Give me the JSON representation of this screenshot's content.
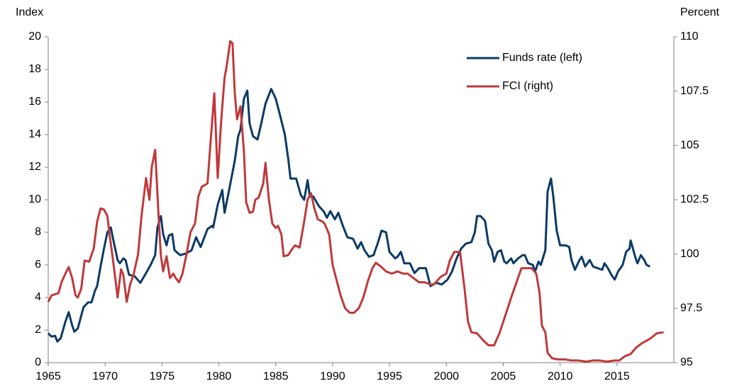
{
  "chart_data": {
    "type": "line",
    "ylabel": "Index",
    "y2label": "Percent",
    "xlim": [
      1965,
      2020
    ],
    "xticks": [
      1965,
      1970,
      1975,
      1980,
      1985,
      1990,
      1995,
      2000,
      2005,
      2010,
      2015
    ],
    "ylim": [
      0,
      20
    ],
    "yticks": [
      0,
      2,
      4,
      6,
      8,
      10,
      12,
      14,
      16,
      18,
      20
    ],
    "y2lim": [
      95,
      110
    ],
    "y2ticks": [
      95,
      97.5,
      100,
      102.5,
      105,
      107.5,
      110
    ],
    "legend": "upper right",
    "series": [
      {
        "name": "Funds rate (left)",
        "color": "#0b3a66",
        "x": [
          1965.0,
          1965.3,
          1965.6,
          1965.8,
          1966.1,
          1966.5,
          1966.8,
          1967.1,
          1967.3,
          1967.6,
          1968.1,
          1968.5,
          1968.8,
          1969.1,
          1969.3,
          1969.6,
          1969.9,
          1970.2,
          1970.5,
          1970.7,
          1971.1,
          1971.3,
          1971.6,
          1971.8,
          1972.1,
          1972.6,
          1973.1,
          1973.6,
          1974.0,
          1974.4,
          1974.6,
          1974.9,
          1975.1,
          1975.4,
          1975.6,
          1975.9,
          1976.1,
          1976.6,
          1977.1,
          1977.6,
          1978.0,
          1978.4,
          1979.0,
          1979.4,
          1979.5,
          1979.9,
          1980.3,
          1980.5,
          1980.9,
          1981.4,
          1981.7,
          1981.9,
          1982.2,
          1982.5,
          1982.7,
          1983.0,
          1983.4,
          1983.7,
          1984.1,
          1984.6,
          1985.0,
          1985.3,
          1985.8,
          1986.1,
          1986.3,
          1986.8,
          1987.2,
          1987.5,
          1987.8,
          1988.0,
          1988.3,
          1988.8,
          1989.2,
          1989.5,
          1989.8,
          1990.2,
          1990.5,
          1990.9,
          1991.3,
          1991.8,
          1992.2,
          1992.5,
          1992.8,
          1993.2,
          1993.6,
          1994.0,
          1994.3,
          1994.7,
          1995.0,
          1995.5,
          1995.7,
          1996.0,
          1996.3,
          1996.8,
          1997.2,
          1997.6,
          1998.2,
          1998.6,
          1999.1,
          1999.6,
          2000.1,
          2000.5,
          2000.9,
          2001.3,
          2001.7,
          2002.2,
          2002.5,
          2002.7,
          2003.0,
          2003.4,
          2003.7,
          2004.0,
          2004.2,
          2004.5,
          2004.8,
          2005.1,
          2005.3,
          2005.7,
          2005.9,
          2006.3,
          2006.7,
          2006.9,
          2007.2,
          2007.6,
          2007.8,
          2008.1,
          2008.3,
          2008.7,
          2008.9,
          2009.2,
          2009.4,
          2009.7,
          2010.0,
          2010.5,
          2010.8,
          2011.0,
          2011.3,
          2011.7,
          2011.9,
          2012.2,
          2012.6,
          2012.9,
          2013.3,
          2013.7,
          2013.9,
          2014.2,
          2014.5,
          2014.8,
          2015.1,
          2015.5,
          2015.8,
          2016.1,
          2016.2,
          2016.6,
          2016.8,
          2017.1,
          2017.4,
          2017.6,
          2017.9
        ],
        "values": [
          1.8,
          1.6,
          1.65,
          1.3,
          1.5,
          2.5,
          3.1,
          2.3,
          1.9,
          2.1,
          3.4,
          3.7,
          3.7,
          4.4,
          4.7,
          5.9,
          7.0,
          8.0,
          8.3,
          7.6,
          6.3,
          6.1,
          6.4,
          6.3,
          5.4,
          5.3,
          4.9,
          5.5,
          6.0,
          6.6,
          8.3,
          9.0,
          7.9,
          7.2,
          7.8,
          7.9,
          6.9,
          6.6,
          6.7,
          6.9,
          7.7,
          7.1,
          8.2,
          8.4,
          8.3,
          9.7,
          10.6,
          9.2,
          10.6,
          12.4,
          13.9,
          14.3,
          16.2,
          16.7,
          14.7,
          13.9,
          13.7,
          14.6,
          15.9,
          16.8,
          16.2,
          15.4,
          14.0,
          12.5,
          11.3,
          11.3,
          10.3,
          10.0,
          11.2,
          10.2,
          10.2,
          9.6,
          9.3,
          8.9,
          9.3,
          8.8,
          9.2,
          8.4,
          7.7,
          7.6,
          7.0,
          7.4,
          6.9,
          6.5,
          6.6,
          7.4,
          8.1,
          8.0,
          6.8,
          6.4,
          6.5,
          6.8,
          6.1,
          6.1,
          5.5,
          5.8,
          5.8,
          4.7,
          4.9,
          4.8,
          5.1,
          5.6,
          6.4,
          7.0,
          7.3,
          7.4,
          8.0,
          9.0,
          9.0,
          8.7,
          7.3,
          6.9,
          6.2,
          6.8,
          6.9,
          6.2,
          6.1,
          6.4,
          6.1,
          6.4,
          6.6,
          6.6,
          6.1,
          6.0,
          5.6,
          6.2,
          6.0,
          6.9,
          10.5,
          11.3,
          10.2,
          8.1,
          7.2,
          7.2,
          7.1,
          6.3,
          5.7,
          6.3,
          6.5,
          5.9,
          6.3,
          5.9,
          5.8,
          5.7,
          6.1,
          5.8,
          5.4,
          5.1,
          5.6,
          6.0,
          6.8,
          7.0,
          7.5,
          6.5,
          6.1,
          6.6,
          6.3,
          6.0,
          5.9
        ]
      },
      {
        "name": "FCI (right)",
        "color": "#c0393b",
        "axis": "y2",
        "x": [
          1965.0,
          1965.3,
          1965.6,
          1965.9,
          1966.2,
          1966.6,
          1966.8,
          1967.1,
          1967.4,
          1967.6,
          1967.9,
          1968.2,
          1968.6,
          1969.0,
          1969.3,
          1969.6,
          1969.9,
          1970.2,
          1970.4,
          1970.7,
          1971.1,
          1971.4,
          1971.6,
          1971.9,
          1972.2,
          1972.5,
          1972.9,
          1973.2,
          1973.6,
          1973.9,
          1974.1,
          1974.4,
          1974.7,
          1974.9,
          1975.1,
          1975.4,
          1975.7,
          1976.0,
          1976.2,
          1976.5,
          1976.8,
          1977.2,
          1977.5,
          1977.9,
          1978.2,
          1978.5,
          1979.0,
          1979.3,
          1979.6,
          1979.9,
          1980.2,
          1980.5,
          1980.7,
          1981.0,
          1981.2,
          1981.4,
          1981.6,
          1981.9,
          1982.2,
          1982.4,
          1982.7,
          1983.0,
          1983.2,
          1983.5,
          1983.9,
          1984.1,
          1984.4,
          1984.7,
          1985.0,
          1985.2,
          1985.5,
          1985.7,
          1986.1,
          1986.4,
          1986.7,
          1987.1,
          1987.5,
          1987.8,
          1988.1,
          1988.4,
          1988.7,
          1989.1,
          1989.3,
          1989.7,
          1990.0,
          1990.3,
          1990.7,
          1991.1,
          1991.5,
          1991.9,
          1992.3,
          1992.7,
          1993.1,
          1993.5,
          1993.8,
          1994.3,
          1994.7,
          1995.2,
          1995.7,
          1996.2,
          1996.6,
          1997.1,
          1997.6,
          1998.1,
          1998.6,
          1998.9,
          1999.5,
          2000.0,
          2000.3,
          2000.7,
          2001.2,
          2001.6,
          2001.9,
          2002.2,
          2002.7,
          2003.2,
          2003.7,
          2004.2,
          2004.7,
          2005.2,
          2005.7,
          2006.2,
          2006.6,
          2007.5,
          2007.9,
          2008.2,
          2008.4,
          2008.7,
          2008.9,
          2009.3,
          2009.8,
          2010.4,
          2011.0,
          2011.6,
          2012.3,
          2012.9,
          2013.5,
          2014.1,
          2014.8,
          2015.2,
          2015.7,
          2016.2,
          2016.7,
          2017.2,
          2017.9,
          2018.5,
          2019.1
        ],
        "values": [
          97.8,
          98.1,
          98.15,
          98.2,
          98.75,
          99.2,
          99.4,
          98.9,
          98.1,
          98.0,
          98.4,
          99.7,
          99.65,
          100.25,
          101.5,
          102.1,
          102.05,
          101.75,
          100.85,
          99.7,
          98.0,
          99.3,
          99.05,
          97.8,
          98.6,
          99.05,
          100.0,
          101.75,
          103.5,
          102.5,
          104.0,
          104.8,
          101.75,
          99.95,
          99.2,
          99.9,
          98.9,
          99.1,
          98.9,
          98.7,
          99.1,
          100.1,
          101.0,
          101.4,
          102.65,
          103.1,
          103.25,
          105.35,
          107.4,
          103.5,
          106.1,
          108.1,
          108.7,
          109.8,
          109.7,
          107.4,
          106.2,
          106.8,
          104.75,
          102.4,
          101.9,
          101.95,
          102.5,
          102.6,
          103.25,
          104.2,
          102.5,
          101.4,
          101.2,
          101.3,
          100.9,
          99.9,
          99.95,
          100.2,
          100.4,
          100.3,
          101.5,
          102.5,
          102.8,
          102.1,
          101.6,
          101.5,
          101.4,
          100.9,
          99.5,
          98.9,
          98.1,
          97.5,
          97.3,
          97.3,
          97.5,
          98.0,
          98.75,
          99.35,
          99.6,
          99.4,
          99.2,
          99.1,
          99.2,
          99.1,
          99.1,
          98.9,
          98.7,
          98.7,
          98.6,
          98.6,
          98.95,
          99.1,
          99.7,
          100.1,
          100.1,
          98.4,
          96.9,
          96.4,
          96.35,
          96.05,
          95.8,
          95.8,
          96.4,
          97.2,
          98.0,
          98.75,
          99.35,
          99.35,
          99.1,
          98.2,
          96.7,
          96.4,
          95.45,
          95.2,
          95.15,
          95.15,
          95.1,
          95.1,
          95.05,
          95.1,
          95.1,
          95.05,
          95.1,
          95.1,
          95.3,
          95.4,
          95.7,
          95.9,
          96.1,
          96.35,
          96.4
        ]
      }
    ]
  }
}
